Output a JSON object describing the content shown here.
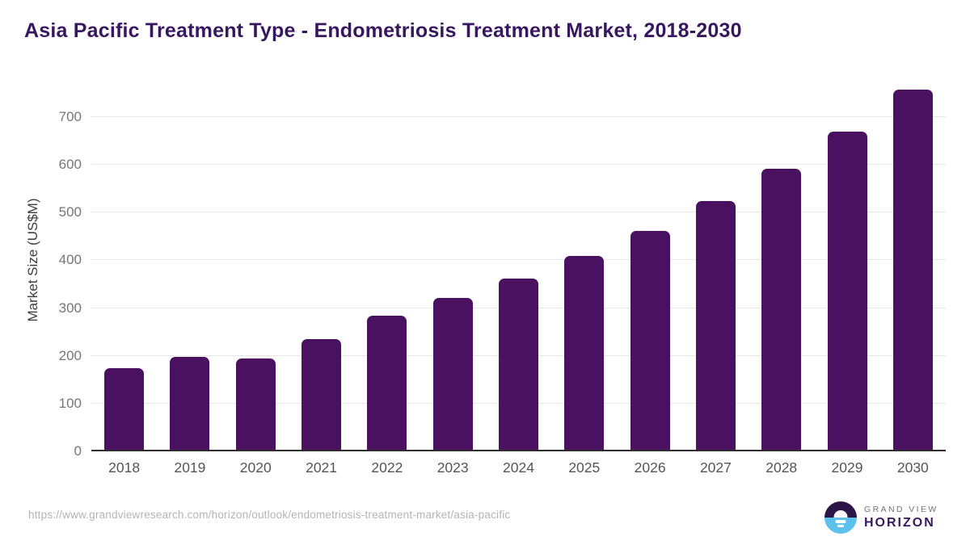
{
  "header": {
    "title": "Asia Pacific Treatment Type - Endometriosis Treatment Market, 2018-2030"
  },
  "chart_data": {
    "type": "bar",
    "title": "Asia Pacific Treatment Type - Endometriosis Treatment Market, 2018-2030",
    "categories": [
      "2018",
      "2019",
      "2020",
      "2021",
      "2022",
      "2023",
      "2024",
      "2025",
      "2026",
      "2027",
      "2028",
      "2029",
      "2030"
    ],
    "values": [
      171,
      194,
      191,
      232,
      280,
      318,
      358,
      406,
      459,
      520,
      589,
      667,
      754
    ],
    "xlabel": "",
    "ylabel": "Market Size (US$M)",
    "ylim": [
      0,
      776
    ],
    "y_ticks": [
      0,
      100,
      200,
      300,
      400,
      500,
      600,
      700
    ],
    "grid": true,
    "legend": "none",
    "bar_color": "#4a1160"
  },
  "footer": {
    "source_url": "https://www.grandviewresearch.com/horizon/outlook/endometriosis-treatment-market/asia-pacific",
    "logo": {
      "brand_top": "GRAND VIEW",
      "brand_bottom": "HORIZON"
    }
  },
  "colors": {
    "title": "#371760",
    "bar": "#4a1160",
    "gridline": "#e6e6e6",
    "axis_line": "#2e2e2e",
    "y_tick_label": "#757575",
    "x_tick_label": "#555555",
    "y_axis_title": "#3d3d3d",
    "url_text": "#b4b4b4",
    "logo_blue": "#5cc2ec",
    "logo_dark_purple": "#2d1447"
  }
}
